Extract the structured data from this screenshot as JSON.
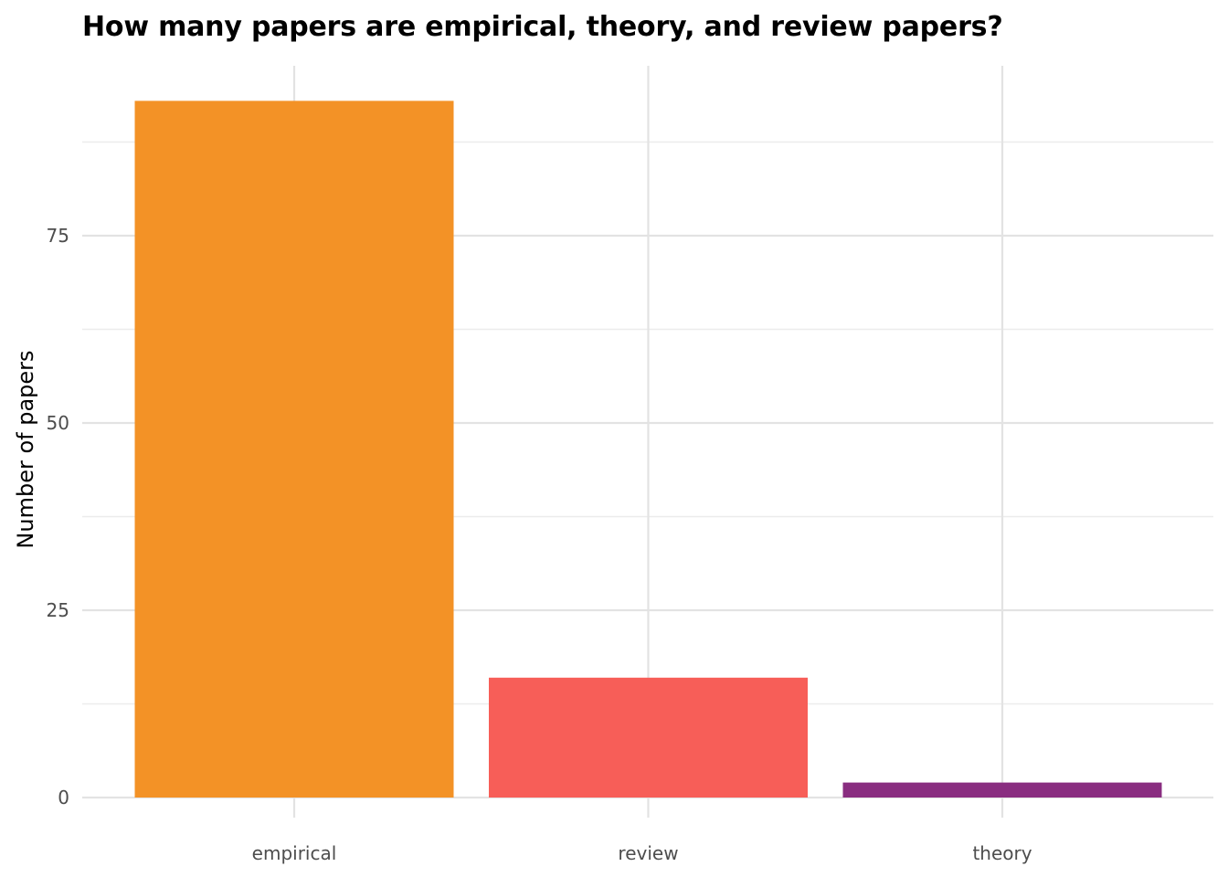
{
  "chart_data": {
    "type": "bar",
    "title": "How many papers are empirical, theory, and review papers?",
    "xlabel": "",
    "ylabel": "Number of papers",
    "categories": [
      "empirical",
      "review",
      "theory"
    ],
    "values": [
      93,
      16,
      2
    ],
    "colors": [
      "#f39226",
      "#f75e58",
      "#892d80"
    ],
    "ylim": [
      0,
      100
    ],
    "yticks": [
      0,
      25,
      50,
      75
    ],
    "y_minor_ticks": [
      12.5,
      37.5,
      62.5,
      87.5
    ],
    "grid": true,
    "legend": "none"
  }
}
